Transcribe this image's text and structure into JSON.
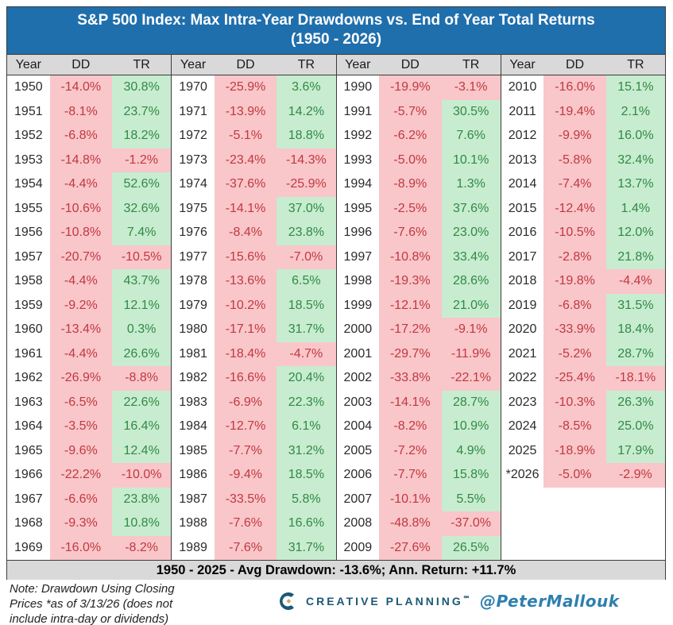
{
  "header": {
    "title_line1": "S&P 500 Index: Max Intra-Year Drawdowns vs. End of Year Total Returns",
    "title_line2": "(1950 - 2026)"
  },
  "columns": [
    "Year",
    "DD",
    "TR"
  ],
  "chart_data": {
    "type": "table",
    "title": "S&P 500 Index: Max Intra-Year Drawdowns vs. End of Year Total Returns (1950 - 2026)",
    "column_headers": [
      "Year",
      "DD",
      "TR"
    ],
    "groups": [
      {
        "rows": [
          {
            "year": "1950",
            "dd": "-14.0%",
            "tr": "30.8%"
          },
          {
            "year": "1951",
            "dd": "-8.1%",
            "tr": "23.7%"
          },
          {
            "year": "1952",
            "dd": "-6.8%",
            "tr": "18.2%"
          },
          {
            "year": "1953",
            "dd": "-14.8%",
            "tr": "-1.2%"
          },
          {
            "year": "1954",
            "dd": "-4.4%",
            "tr": "52.6%"
          },
          {
            "year": "1955",
            "dd": "-10.6%",
            "tr": "32.6%"
          },
          {
            "year": "1956",
            "dd": "-10.8%",
            "tr": "7.4%"
          },
          {
            "year": "1957",
            "dd": "-20.7%",
            "tr": "-10.5%"
          },
          {
            "year": "1958",
            "dd": "-4.4%",
            "tr": "43.7%"
          },
          {
            "year": "1959",
            "dd": "-9.2%",
            "tr": "12.1%"
          },
          {
            "year": "1960",
            "dd": "-13.4%",
            "tr": "0.3%"
          },
          {
            "year": "1961",
            "dd": "-4.4%",
            "tr": "26.6%"
          },
          {
            "year": "1962",
            "dd": "-26.9%",
            "tr": "-8.8%"
          },
          {
            "year": "1963",
            "dd": "-6.5%",
            "tr": "22.6%"
          },
          {
            "year": "1964",
            "dd": "-3.5%",
            "tr": "16.4%"
          },
          {
            "year": "1965",
            "dd": "-9.6%",
            "tr": "12.4%"
          },
          {
            "year": "1966",
            "dd": "-22.2%",
            "tr": "-10.0%"
          },
          {
            "year": "1967",
            "dd": "-6.6%",
            "tr": "23.8%"
          },
          {
            "year": "1968",
            "dd": "-9.3%",
            "tr": "10.8%"
          },
          {
            "year": "1969",
            "dd": "-16.0%",
            "tr": "-8.2%"
          }
        ]
      },
      {
        "rows": [
          {
            "year": "1970",
            "dd": "-25.9%",
            "tr": "3.6%"
          },
          {
            "year": "1971",
            "dd": "-13.9%",
            "tr": "14.2%"
          },
          {
            "year": "1972",
            "dd": "-5.1%",
            "tr": "18.8%"
          },
          {
            "year": "1973",
            "dd": "-23.4%",
            "tr": "-14.3%"
          },
          {
            "year": "1974",
            "dd": "-37.6%",
            "tr": "-25.9%"
          },
          {
            "year": "1975",
            "dd": "-14.1%",
            "tr": "37.0%"
          },
          {
            "year": "1976",
            "dd": "-8.4%",
            "tr": "23.8%"
          },
          {
            "year": "1977",
            "dd": "-15.6%",
            "tr": "-7.0%"
          },
          {
            "year": "1978",
            "dd": "-13.6%",
            "tr": "6.5%"
          },
          {
            "year": "1979",
            "dd": "-10.2%",
            "tr": "18.5%"
          },
          {
            "year": "1980",
            "dd": "-17.1%",
            "tr": "31.7%"
          },
          {
            "year": "1981",
            "dd": "-18.4%",
            "tr": "-4.7%"
          },
          {
            "year": "1982",
            "dd": "-16.6%",
            "tr": "20.4%"
          },
          {
            "year": "1983",
            "dd": "-6.9%",
            "tr": "22.3%"
          },
          {
            "year": "1984",
            "dd": "-12.7%",
            "tr": "6.1%"
          },
          {
            "year": "1985",
            "dd": "-7.7%",
            "tr": "31.2%"
          },
          {
            "year": "1986",
            "dd": "-9.4%",
            "tr": "18.5%"
          },
          {
            "year": "1987",
            "dd": "-33.5%",
            "tr": "5.8%"
          },
          {
            "year": "1988",
            "dd": "-7.6%",
            "tr": "16.6%"
          },
          {
            "year": "1989",
            "dd": "-7.6%",
            "tr": "31.7%"
          }
        ]
      },
      {
        "rows": [
          {
            "year": "1990",
            "dd": "-19.9%",
            "tr": "-3.1%"
          },
          {
            "year": "1991",
            "dd": "-5.7%",
            "tr": "30.5%"
          },
          {
            "year": "1992",
            "dd": "-6.2%",
            "tr": "7.6%"
          },
          {
            "year": "1993",
            "dd": "-5.0%",
            "tr": "10.1%"
          },
          {
            "year": "1994",
            "dd": "-8.9%",
            "tr": "1.3%"
          },
          {
            "year": "1995",
            "dd": "-2.5%",
            "tr": "37.6%"
          },
          {
            "year": "1996",
            "dd": "-7.6%",
            "tr": "23.0%"
          },
          {
            "year": "1997",
            "dd": "-10.8%",
            "tr": "33.4%"
          },
          {
            "year": "1998",
            "dd": "-19.3%",
            "tr": "28.6%"
          },
          {
            "year": "1999",
            "dd": "-12.1%",
            "tr": "21.0%"
          },
          {
            "year": "2000",
            "dd": "-17.2%",
            "tr": "-9.1%"
          },
          {
            "year": "2001",
            "dd": "-29.7%",
            "tr": "-11.9%"
          },
          {
            "year": "2002",
            "dd": "-33.8%",
            "tr": "-22.1%"
          },
          {
            "year": "2003",
            "dd": "-14.1%",
            "tr": "28.7%"
          },
          {
            "year": "2004",
            "dd": "-8.2%",
            "tr": "10.9%"
          },
          {
            "year": "2005",
            "dd": "-7.2%",
            "tr": "4.9%"
          },
          {
            "year": "2006",
            "dd": "-7.7%",
            "tr": "15.8%"
          },
          {
            "year": "2007",
            "dd": "-10.1%",
            "tr": "5.5%"
          },
          {
            "year": "2008",
            "dd": "-48.8%",
            "tr": "-37.0%"
          },
          {
            "year": "2009",
            "dd": "-27.6%",
            "tr": "26.5%"
          }
        ]
      },
      {
        "rows": [
          {
            "year": "2010",
            "dd": "-16.0%",
            "tr": "15.1%"
          },
          {
            "year": "2011",
            "dd": "-19.4%",
            "tr": "2.1%"
          },
          {
            "year": "2012",
            "dd": "-9.9%",
            "tr": "16.0%"
          },
          {
            "year": "2013",
            "dd": "-5.8%",
            "tr": "32.4%"
          },
          {
            "year": "2014",
            "dd": "-7.4%",
            "tr": "13.7%"
          },
          {
            "year": "2015",
            "dd": "-12.4%",
            "tr": "1.4%"
          },
          {
            "year": "2016",
            "dd": "-10.5%",
            "tr": "12.0%"
          },
          {
            "year": "2017",
            "dd": "-2.8%",
            "tr": "21.8%"
          },
          {
            "year": "2018",
            "dd": "-19.8%",
            "tr": "-4.4%"
          },
          {
            "year": "2019",
            "dd": "-6.8%",
            "tr": "31.5%"
          },
          {
            "year": "2020",
            "dd": "-33.9%",
            "tr": "18.4%"
          },
          {
            "year": "2021",
            "dd": "-5.2%",
            "tr": "28.7%"
          },
          {
            "year": "2022",
            "dd": "-25.4%",
            "tr": "-18.1%"
          },
          {
            "year": "2023",
            "dd": "-10.3%",
            "tr": "26.3%"
          },
          {
            "year": "2024",
            "dd": "-8.5%",
            "tr": "25.0%"
          },
          {
            "year": "2025",
            "dd": "-18.9%",
            "tr": "17.9%"
          },
          {
            "year": "*2026",
            "dd": "-5.0%",
            "tr": "-2.9%"
          }
        ]
      }
    ]
  },
  "summary": {
    "text": "1950 - 2025 - Avg Drawdown: -13.6%; Ann. Return: +11.7%"
  },
  "footer": {
    "note_line1": "Note: Drawdown Using Closing",
    "note_line2": "Prices *as of 3/13/26 (does not",
    "note_line3": "include intra-day or dividends)",
    "brand": "CREATIVE PLANNING",
    "handle": "@PeterMallouk"
  },
  "colors": {
    "title_bar_blue": "#1f6fad",
    "negative_bg": "#f9c6ca",
    "negative_text": "#c0393f",
    "positive_bg": "#c8ecd0",
    "positive_text": "#2f8a44",
    "header_grey": "#d9d9d9",
    "brand_blue": "#1b5876",
    "handle_blue": "#2e7fae",
    "logo_gold": "#c9a968"
  }
}
